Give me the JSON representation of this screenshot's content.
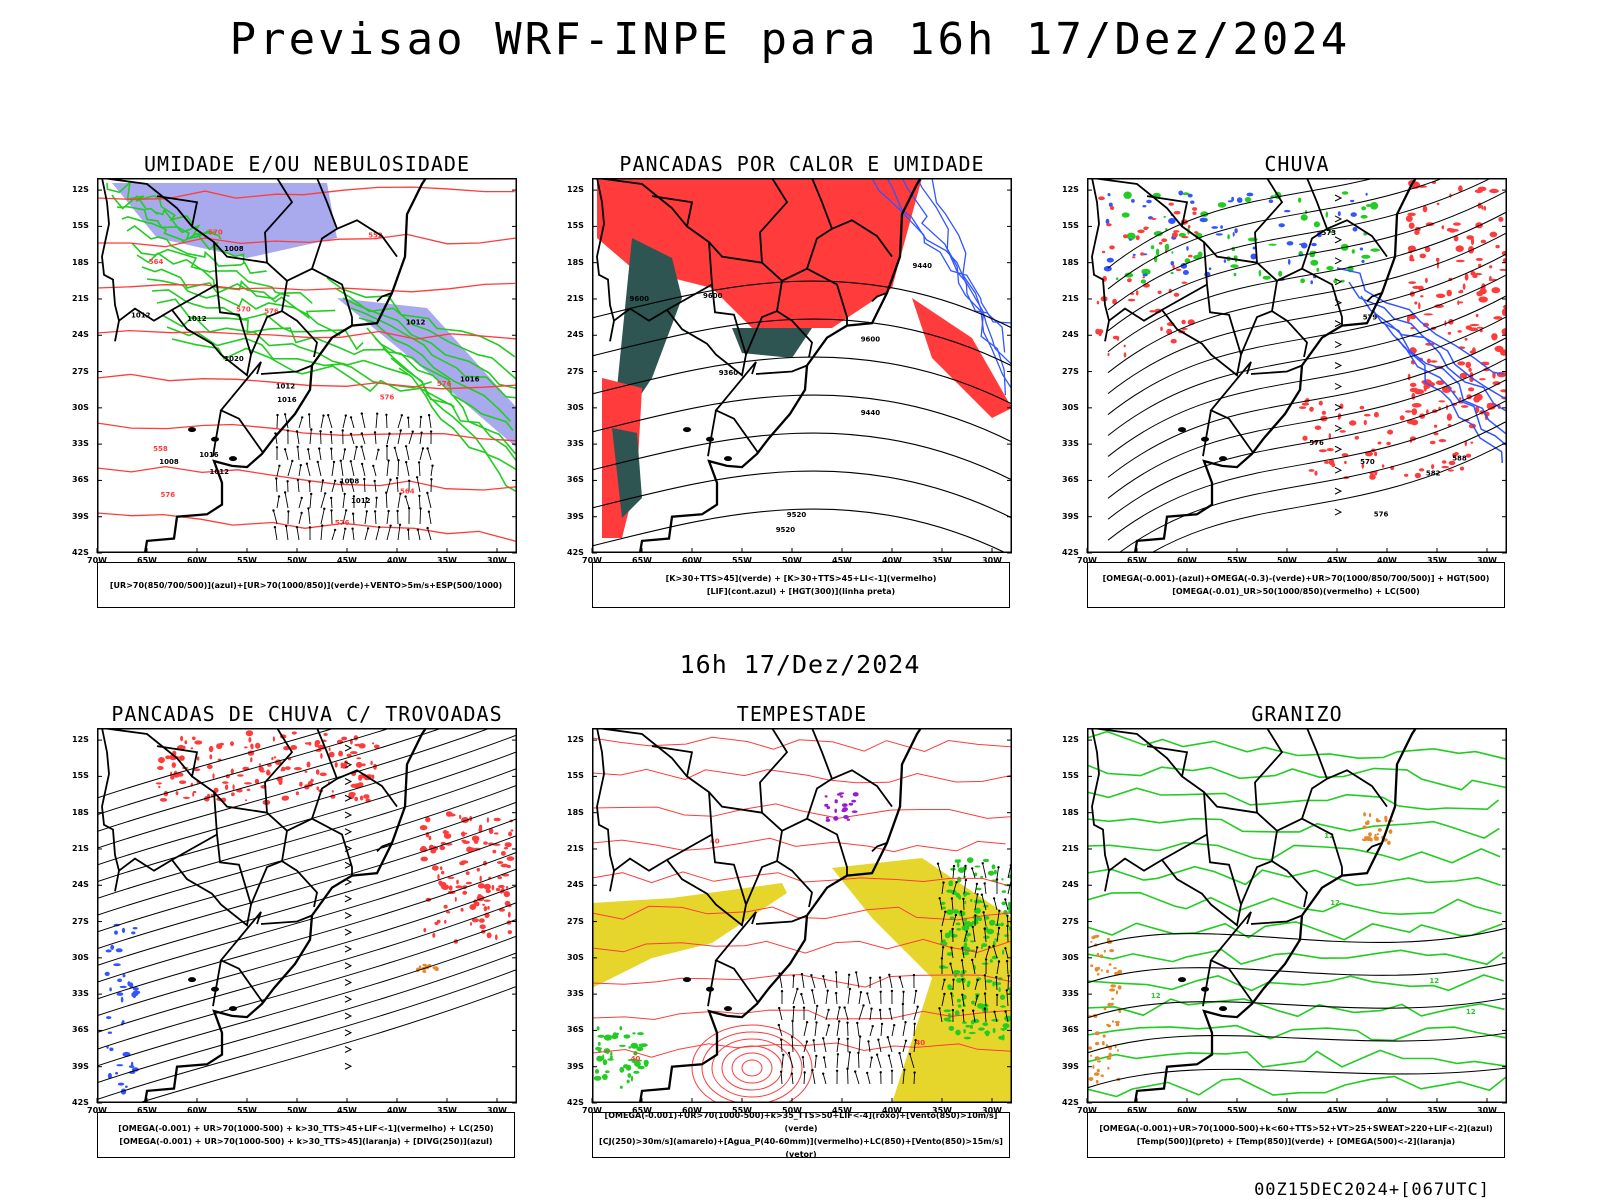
{
  "title": "Previsao WRF-INPE  para 16h 17/Dez/2024",
  "mid_title": "16h 17/Dez/2024",
  "footer": "00Z15DEC2024+[067UTC]",
  "lat_labels": [
    "12S",
    "15S",
    "18S",
    "21S",
    "24S",
    "27S",
    "30S",
    "33S",
    "36S",
    "39S",
    "42S"
  ],
  "lon_labels": [
    "70W",
    "65W",
    "60W",
    "55W",
    "50W",
    "45W",
    "40W",
    "35W",
    "30W"
  ],
  "colors": {
    "red": "#ff3b3b",
    "green": "#22cc22",
    "blue": "#3355ff",
    "lavender": "#a9a9ee",
    "darkteal": "#2f5552",
    "yellow": "#e6d62b",
    "orange": "#e58a2a",
    "purple": "#9a1bd6"
  },
  "panels": [
    {
      "title": "UMIDADE E/OU NEBULOSIDADE",
      "legend": [
        "[UR>70(850/700/500)](azul)+[UR>70(1000/850)](verde)+VENTO>5m/s+ESP(500/1000)"
      ],
      "contours": [
        "1012",
        "1008",
        "1016",
        "1012",
        "1012",
        "1008",
        "1016",
        "1020",
        "1016",
        "1012",
        "1008",
        "1012",
        "1012"
      ],
      "red_labels": [
        "576",
        "576",
        "576",
        "570",
        "576",
        "564",
        "558",
        "552",
        "570",
        "576",
        "564"
      ]
    },
    {
      "title": "PANCADAS POR CALOR E UMIDADE",
      "legend": [
        "[K>30+TTS>45](verde) + [K>30+TTS>45+LI<-1](vermelho)",
        "[LIF](cont.azul) + [HGT(300)](linha preta)"
      ],
      "contours": [
        "9600",
        "9600",
        "9600",
        "9520",
        "9440",
        "9520",
        "9440",
        "9360"
      ]
    },
    {
      "title": "CHUVA",
      "legend": [
        "[OMEGA(-0.001)-(azul)+OMEGA(-0.3)-(verde)+UR>70(1000/850/700/500)] + HGT(500)",
        "[OMEGA(-0.01)_UR>50(1000/850)(vermelho) + LC(500)"
      ],
      "contours": [
        "582",
        "588",
        "576",
        "573",
        "570",
        "579",
        "576"
      ]
    },
    {
      "title": "PANCADAS DE CHUVA C/ TROVOADAS",
      "legend": [
        "[OMEGA(-0.001) + UR>70(1000-500) + k>30_TTS>45+LIF<-1](vermelho) + LC(250)",
        "[OMEGA(-0.001) + UR>70(1000-500) + k>30_TTS>45](laranja) + [DIVG(250)](azul)"
      ]
    },
    {
      "title": "TEMPESTADE",
      "legend": [
        "[OMEGA(-0.001)+UR>70(1000-500)+k>35_TTS>50+LIF<-4](roxo)+[Vento(850)>10m/s](verde)",
        "[CJ(250)>30m/s](amarelo)+[Agua_P(40-60mm)](vermelho)+LC(850)+[Vento(850)>15m/s](vetor)"
      ],
      "contours": [
        "40",
        "40",
        "40"
      ]
    },
    {
      "title": "GRANIZO",
      "legend": [
        "[OMEGA(-0.001)+UR>70(1000-500)+k<60+TTS>52+VT>25+SWEAT>220+LIF<-2](azul)",
        "[Temp(500)](preto) + [Temp(850)](verde) + [OMEGA(500)<-2](laranja)"
      ],
      "contours": [
        "12",
        "12",
        "12",
        "12",
        "12"
      ]
    }
  ]
}
